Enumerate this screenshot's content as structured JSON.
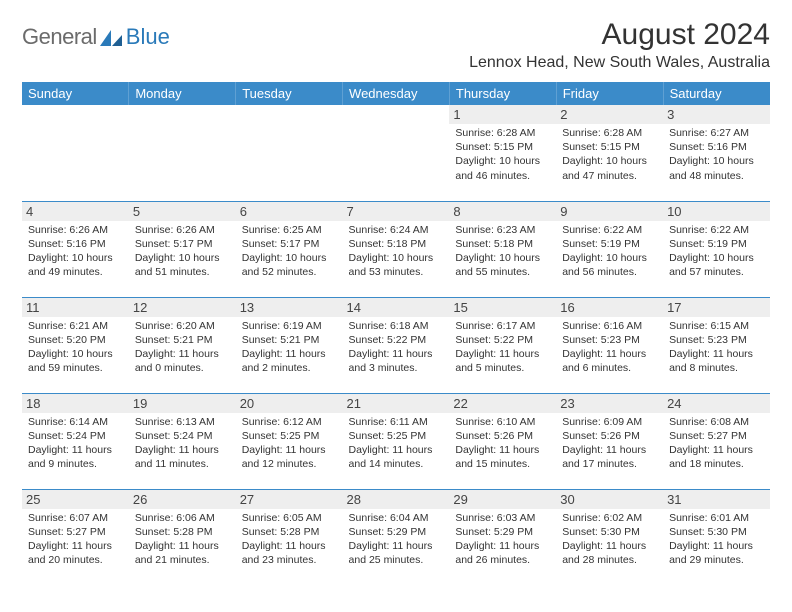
{
  "logo": {
    "text_gray": "General",
    "text_blue": "Blue"
  },
  "title": "August 2024",
  "location": "Lennox Head, New South Wales, Australia",
  "colors": {
    "header_bg": "#3b8bc9",
    "header_text": "#ffffff",
    "row_divider": "#3b8bc9",
    "daynum_bg": "#eeeeee",
    "logo_gray": "#6b6b6b",
    "logo_blue": "#2a7ab9",
    "body_text": "#333333"
  },
  "typography": {
    "title_fontsize": 30,
    "location_fontsize": 16,
    "weekday_fontsize": 13,
    "daynum_fontsize": 13,
    "detail_fontsize": 10.5
  },
  "weekdays": [
    "Sunday",
    "Monday",
    "Tuesday",
    "Wednesday",
    "Thursday",
    "Friday",
    "Saturday"
  ],
  "weeks": [
    [
      {
        "day": "",
        "sunrise": "",
        "sunset": "",
        "daylight": ""
      },
      {
        "day": "",
        "sunrise": "",
        "sunset": "",
        "daylight": ""
      },
      {
        "day": "",
        "sunrise": "",
        "sunset": "",
        "daylight": ""
      },
      {
        "day": "",
        "sunrise": "",
        "sunset": "",
        "daylight": ""
      },
      {
        "day": "1",
        "sunrise": "Sunrise: 6:28 AM",
        "sunset": "Sunset: 5:15 PM",
        "daylight": "Daylight: 10 hours and 46 minutes."
      },
      {
        "day": "2",
        "sunrise": "Sunrise: 6:28 AM",
        "sunset": "Sunset: 5:15 PM",
        "daylight": "Daylight: 10 hours and 47 minutes."
      },
      {
        "day": "3",
        "sunrise": "Sunrise: 6:27 AM",
        "sunset": "Sunset: 5:16 PM",
        "daylight": "Daylight: 10 hours and 48 minutes."
      }
    ],
    [
      {
        "day": "4",
        "sunrise": "Sunrise: 6:26 AM",
        "sunset": "Sunset: 5:16 PM",
        "daylight": "Daylight: 10 hours and 49 minutes."
      },
      {
        "day": "5",
        "sunrise": "Sunrise: 6:26 AM",
        "sunset": "Sunset: 5:17 PM",
        "daylight": "Daylight: 10 hours and 51 minutes."
      },
      {
        "day": "6",
        "sunrise": "Sunrise: 6:25 AM",
        "sunset": "Sunset: 5:17 PM",
        "daylight": "Daylight: 10 hours and 52 minutes."
      },
      {
        "day": "7",
        "sunrise": "Sunrise: 6:24 AM",
        "sunset": "Sunset: 5:18 PM",
        "daylight": "Daylight: 10 hours and 53 minutes."
      },
      {
        "day": "8",
        "sunrise": "Sunrise: 6:23 AM",
        "sunset": "Sunset: 5:18 PM",
        "daylight": "Daylight: 10 hours and 55 minutes."
      },
      {
        "day": "9",
        "sunrise": "Sunrise: 6:22 AM",
        "sunset": "Sunset: 5:19 PM",
        "daylight": "Daylight: 10 hours and 56 minutes."
      },
      {
        "day": "10",
        "sunrise": "Sunrise: 6:22 AM",
        "sunset": "Sunset: 5:19 PM",
        "daylight": "Daylight: 10 hours and 57 minutes."
      }
    ],
    [
      {
        "day": "11",
        "sunrise": "Sunrise: 6:21 AM",
        "sunset": "Sunset: 5:20 PM",
        "daylight": "Daylight: 10 hours and 59 minutes."
      },
      {
        "day": "12",
        "sunrise": "Sunrise: 6:20 AM",
        "sunset": "Sunset: 5:21 PM",
        "daylight": "Daylight: 11 hours and 0 minutes."
      },
      {
        "day": "13",
        "sunrise": "Sunrise: 6:19 AM",
        "sunset": "Sunset: 5:21 PM",
        "daylight": "Daylight: 11 hours and 2 minutes."
      },
      {
        "day": "14",
        "sunrise": "Sunrise: 6:18 AM",
        "sunset": "Sunset: 5:22 PM",
        "daylight": "Daylight: 11 hours and 3 minutes."
      },
      {
        "day": "15",
        "sunrise": "Sunrise: 6:17 AM",
        "sunset": "Sunset: 5:22 PM",
        "daylight": "Daylight: 11 hours and 5 minutes."
      },
      {
        "day": "16",
        "sunrise": "Sunrise: 6:16 AM",
        "sunset": "Sunset: 5:23 PM",
        "daylight": "Daylight: 11 hours and 6 minutes."
      },
      {
        "day": "17",
        "sunrise": "Sunrise: 6:15 AM",
        "sunset": "Sunset: 5:23 PM",
        "daylight": "Daylight: 11 hours and 8 minutes."
      }
    ],
    [
      {
        "day": "18",
        "sunrise": "Sunrise: 6:14 AM",
        "sunset": "Sunset: 5:24 PM",
        "daylight": "Daylight: 11 hours and 9 minutes."
      },
      {
        "day": "19",
        "sunrise": "Sunrise: 6:13 AM",
        "sunset": "Sunset: 5:24 PM",
        "daylight": "Daylight: 11 hours and 11 minutes."
      },
      {
        "day": "20",
        "sunrise": "Sunrise: 6:12 AM",
        "sunset": "Sunset: 5:25 PM",
        "daylight": "Daylight: 11 hours and 12 minutes."
      },
      {
        "day": "21",
        "sunrise": "Sunrise: 6:11 AM",
        "sunset": "Sunset: 5:25 PM",
        "daylight": "Daylight: 11 hours and 14 minutes."
      },
      {
        "day": "22",
        "sunrise": "Sunrise: 6:10 AM",
        "sunset": "Sunset: 5:26 PM",
        "daylight": "Daylight: 11 hours and 15 minutes."
      },
      {
        "day": "23",
        "sunrise": "Sunrise: 6:09 AM",
        "sunset": "Sunset: 5:26 PM",
        "daylight": "Daylight: 11 hours and 17 minutes."
      },
      {
        "day": "24",
        "sunrise": "Sunrise: 6:08 AM",
        "sunset": "Sunset: 5:27 PM",
        "daylight": "Daylight: 11 hours and 18 minutes."
      }
    ],
    [
      {
        "day": "25",
        "sunrise": "Sunrise: 6:07 AM",
        "sunset": "Sunset: 5:27 PM",
        "daylight": "Daylight: 11 hours and 20 minutes."
      },
      {
        "day": "26",
        "sunrise": "Sunrise: 6:06 AM",
        "sunset": "Sunset: 5:28 PM",
        "daylight": "Daylight: 11 hours and 21 minutes."
      },
      {
        "day": "27",
        "sunrise": "Sunrise: 6:05 AM",
        "sunset": "Sunset: 5:28 PM",
        "daylight": "Daylight: 11 hours and 23 minutes."
      },
      {
        "day": "28",
        "sunrise": "Sunrise: 6:04 AM",
        "sunset": "Sunset: 5:29 PM",
        "daylight": "Daylight: 11 hours and 25 minutes."
      },
      {
        "day": "29",
        "sunrise": "Sunrise: 6:03 AM",
        "sunset": "Sunset: 5:29 PM",
        "daylight": "Daylight: 11 hours and 26 minutes."
      },
      {
        "day": "30",
        "sunrise": "Sunrise: 6:02 AM",
        "sunset": "Sunset: 5:30 PM",
        "daylight": "Daylight: 11 hours and 28 minutes."
      },
      {
        "day": "31",
        "sunrise": "Sunrise: 6:01 AM",
        "sunset": "Sunset: 5:30 PM",
        "daylight": "Daylight: 11 hours and 29 minutes."
      }
    ]
  ]
}
